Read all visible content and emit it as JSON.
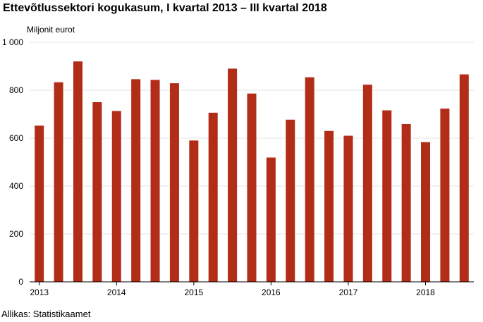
{
  "title": "Ettevõtlussektori kogukasum, I kvartal 2013 – III kvartal 2018",
  "unit_label": "Miljonit eurot",
  "source": "Allikas: Statistikaamet",
  "colors": {
    "bar": "#b22d18",
    "grid": "#e6e6e6",
    "axis": "#000000"
  },
  "chart_data": {
    "type": "bar",
    "title": "Ettevõtlussektori kogukasum, I kvartal 2013 – III kvartal 2018",
    "ylabel": "Miljonit eurot",
    "xlabel": "",
    "ylim": [
      0,
      1000
    ],
    "yticks": [
      0,
      200,
      400,
      600,
      800,
      1000
    ],
    "ytick_labels": [
      "0",
      "200",
      "400",
      "600",
      "800",
      "1 000"
    ],
    "year_labels": [
      "2013",
      "2014",
      "2015",
      "2016",
      "2017",
      "2018"
    ],
    "categories": [
      "I 2013",
      "II 2013",
      "III 2013",
      "IV 2013",
      "I 2014",
      "II 2014",
      "III 2014",
      "IV 2014",
      "I 2015",
      "II 2015",
      "III 2015",
      "IV 2015",
      "I 2016",
      "II 2016",
      "III 2016",
      "IV 2016",
      "I 2017",
      "II 2017",
      "III 2017",
      "IV 2017",
      "I 2018",
      "II 2018",
      "III 2018"
    ],
    "values": [
      652,
      833,
      920,
      750,
      713,
      846,
      843,
      829,
      590,
      706,
      890,
      786,
      519,
      677,
      854,
      630,
      610,
      823,
      716,
      659,
      583,
      723,
      866
    ],
    "grid": true,
    "legend": "none"
  }
}
